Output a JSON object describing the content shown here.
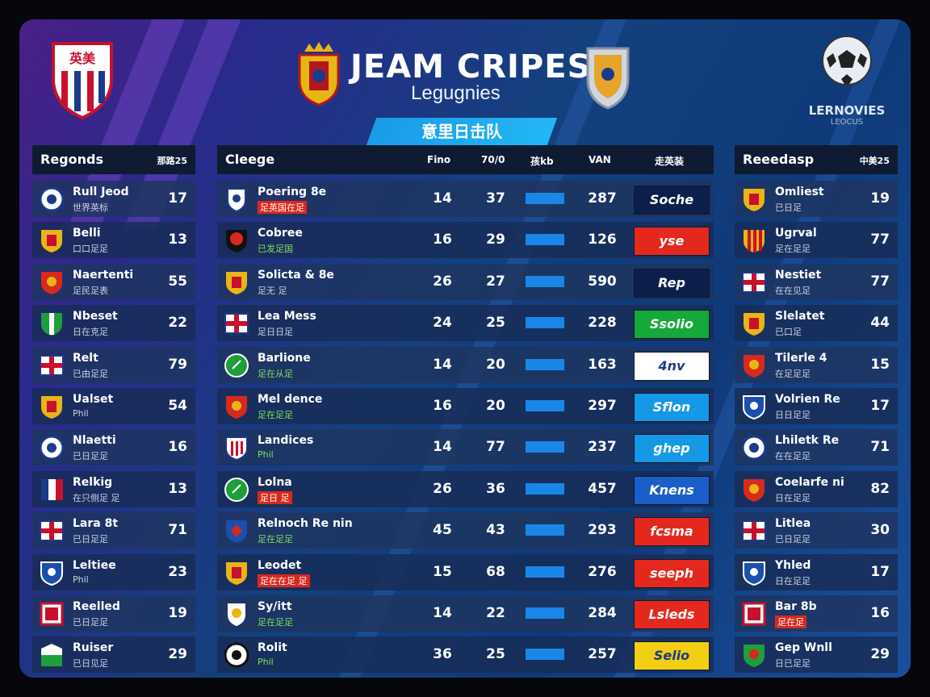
{
  "header": {
    "title": "JEAM CRIPES",
    "subtitle": "Legugnies",
    "banner": "意里日击队",
    "right_logo_text": "LERNOVIES",
    "right_logo_sub": "LEOCUS",
    "crest_left_text": "英美"
  },
  "left_panel": {
    "title": "Regonds",
    "right_label": "那路25",
    "rows": [
      {
        "name": "Rull Jeod",
        "sub": "世界英标",
        "value": "17",
        "icon": "ball-shield-icon",
        "sub_style": ""
      },
      {
        "name": "Belli",
        "sub": "口口足足",
        "value": "13",
        "icon": "yellow-crest-icon",
        "sub_style": ""
      },
      {
        "name": "Naertenti",
        "sub": "足民足表",
        "value": "55",
        "icon": "red-crest-icon",
        "sub_style": ""
      },
      {
        "name": "Nbeset",
        "sub": "日在克足",
        "value": "22",
        "icon": "green-stripe-crest-icon",
        "sub_style": ""
      },
      {
        "name": "Relt",
        "sub": "已由足足",
        "value": "79",
        "icon": "union-crest-icon",
        "sub_style": ""
      },
      {
        "name": "Ualset",
        "sub": "Phil",
        "value": "54",
        "icon": "yellow-crest-icon",
        "sub_style": ""
      },
      {
        "name": "Nlaetti",
        "sub": "已日足足",
        "value": "16",
        "icon": "ball-shield-icon",
        "sub_style": ""
      },
      {
        "name": "Relkig",
        "sub": "在只侧足 足",
        "value": "13",
        "icon": "flag-crest-icon",
        "sub_style": ""
      },
      {
        "name": "Lara 8t",
        "sub": "已日足足",
        "value": "71",
        "icon": "union-crest-icon",
        "sub_style": ""
      },
      {
        "name": "Leltiee",
        "sub": "Phil",
        "value": "23",
        "icon": "blue-shield-icon",
        "sub_style": ""
      },
      {
        "name": "Reelled",
        "sub": "已日足足",
        "value": "19",
        "icon": "red-white-crest-icon",
        "sub_style": ""
      },
      {
        "name": "Ruiser",
        "sub": "已日见足",
        "value": "29",
        "icon": "green-white-crest-icon",
        "sub_style": ""
      }
    ]
  },
  "middle_panel": {
    "title": "Cleege",
    "col_headers": [
      "Fino",
      "70/0",
      "孩kb",
      "VAN",
      "走英装"
    ],
    "rows": [
      {
        "name": "Poering 8e",
        "sub": "足英国在足",
        "c1": "14",
        "c2": "37",
        "c4": "287",
        "sponsor": "Soche",
        "sponsor_bg": "#0c1e4a",
        "icon": "shield-emblem-icon",
        "sub_style": "red"
      },
      {
        "name": "Cobree",
        "sub": "已发足国",
        "c1": "16",
        "c2": "29",
        "c4": "126",
        "sponsor": "yse",
        "sponsor_bg": "#e5281e",
        "icon": "red-black-crest-icon",
        "sub_style": "green"
      },
      {
        "name": "Solicta & 8e",
        "sub": "足无 足",
        "c1": "26",
        "c2": "27",
        "c4": "590",
        "sponsor": "Rep",
        "sponsor_bg": "#0c1e4a",
        "icon": "yellow-crest-icon",
        "sub_style": ""
      },
      {
        "name": "Lea Mess",
        "sub": "足日日足",
        "c1": "24",
        "c2": "25",
        "c4": "228",
        "sponsor": "Ssolio",
        "sponsor_bg": "#15a83a",
        "icon": "union-crest-icon",
        "sub_style": ""
      },
      {
        "name": "Barlione",
        "sub": "足在从足",
        "c1": "14",
        "c2": "20",
        "c4": "163",
        "sponsor": "4nv",
        "sponsor_bg": "#ffffff",
        "icon": "green-circle-icon",
        "sub_style": "green"
      },
      {
        "name": "Mel dence",
        "sub": "足在足足",
        "c1": "16",
        "c2": "20",
        "c4": "297",
        "sponsor": "Sflon",
        "sponsor_bg": "#1598e6",
        "icon": "red-crest-icon",
        "sub_style": "green"
      },
      {
        "name": "Landices",
        "sub": "Phil",
        "c1": "14",
        "c2": "77",
        "c4": "237",
        "sponsor": "ghep",
        "sponsor_bg": "#1598e6",
        "icon": "striped-crest-icon",
        "sub_style": "green"
      },
      {
        "name": "Lolna",
        "sub": "足日 足",
        "c1": "26",
        "c2": "36",
        "c4": "457",
        "sponsor": "Knens",
        "sponsor_bg": "#1a5fc9",
        "icon": "green-circle-icon",
        "sub_style": "red"
      },
      {
        "name": "Relnoch Re nin",
        "sub": "足在足足",
        "c1": "45",
        "c2": "43",
        "c4": "293",
        "sponsor": "fcsma",
        "sponsor_bg": "#e5281e",
        "icon": "blue-diamond-crest-icon",
        "sub_style": "green"
      },
      {
        "name": "Leodet",
        "sub": "足在在足 足",
        "c1": "15",
        "c2": "68",
        "c4": "276",
        "sponsor": "seeph",
        "sponsor_bg": "#e5281e",
        "icon": "yellow-crest-icon",
        "sub_style": "red"
      },
      {
        "name": "Sy/itt",
        "sub": "足在足足",
        "c1": "14",
        "c2": "22",
        "c4": "284",
        "sponsor": "Lsleds",
        "sponsor_bg": "#e5281e",
        "icon": "white-shield-icon",
        "sub_style": "green"
      },
      {
        "name": "Rolit",
        "sub": "Phil",
        "c1": "36",
        "c2": "25",
        "c4": "257",
        "sponsor": "Selio",
        "sponsor_bg": "#f2cf12",
        "icon": "black-white-circle-icon",
        "sub_style": "green"
      }
    ]
  },
  "right_panel": {
    "title": "Reeedasp",
    "right_label": "中美25",
    "rows": [
      {
        "name": "Omliest",
        "sub": "已日足",
        "value": "19",
        "icon": "yellow-crest-icon",
        "sub_style": ""
      },
      {
        "name": "Ugrval",
        "sub": "足在足足",
        "value": "77",
        "icon": "red-yellow-stripe-icon",
        "sub_style": ""
      },
      {
        "name": "Nestiet",
        "sub": "在在见足",
        "value": "77",
        "icon": "union-crest-icon",
        "sub_style": ""
      },
      {
        "name": "Slelatet",
        "sub": "已口足",
        "value": "44",
        "icon": "yellow-crest-icon",
        "sub_style": ""
      },
      {
        "name": "Tilerle 4",
        "sub": "在足足足",
        "value": "15",
        "icon": "red-crest-icon",
        "sub_style": ""
      },
      {
        "name": "Volrien Re",
        "sub": "日日足足",
        "value": "17",
        "icon": "blue-shield-icon",
        "sub_style": ""
      },
      {
        "name": "Lhiletk Re",
        "sub": "在在足足",
        "value": "71",
        "icon": "ball-shield-icon",
        "sub_style": ""
      },
      {
        "name": "Coelarfe ni",
        "sub": "日在足足",
        "value": "82",
        "icon": "red-crest-icon",
        "sub_style": ""
      },
      {
        "name": "Litlea",
        "sub": "已日足足",
        "value": "30",
        "icon": "union-crest-icon",
        "sub_style": ""
      },
      {
        "name": "Yhled",
        "sub": "日在足足",
        "value": "17",
        "icon": "blue-shield-icon",
        "sub_style": ""
      },
      {
        "name": "Bar 8b",
        "sub": "足在足",
        "value": "16",
        "icon": "red-white-crest-icon",
        "sub_style": "red"
      },
      {
        "name": "Gep Wnll",
        "sub": "日已足足",
        "value": "29",
        "icon": "green-red-crest-icon",
        "sub_style": ""
      }
    ]
  },
  "colors": {
    "accent": "#1a9be8",
    "panel_header": "#0e1b33",
    "row": "#1e345f"
  }
}
